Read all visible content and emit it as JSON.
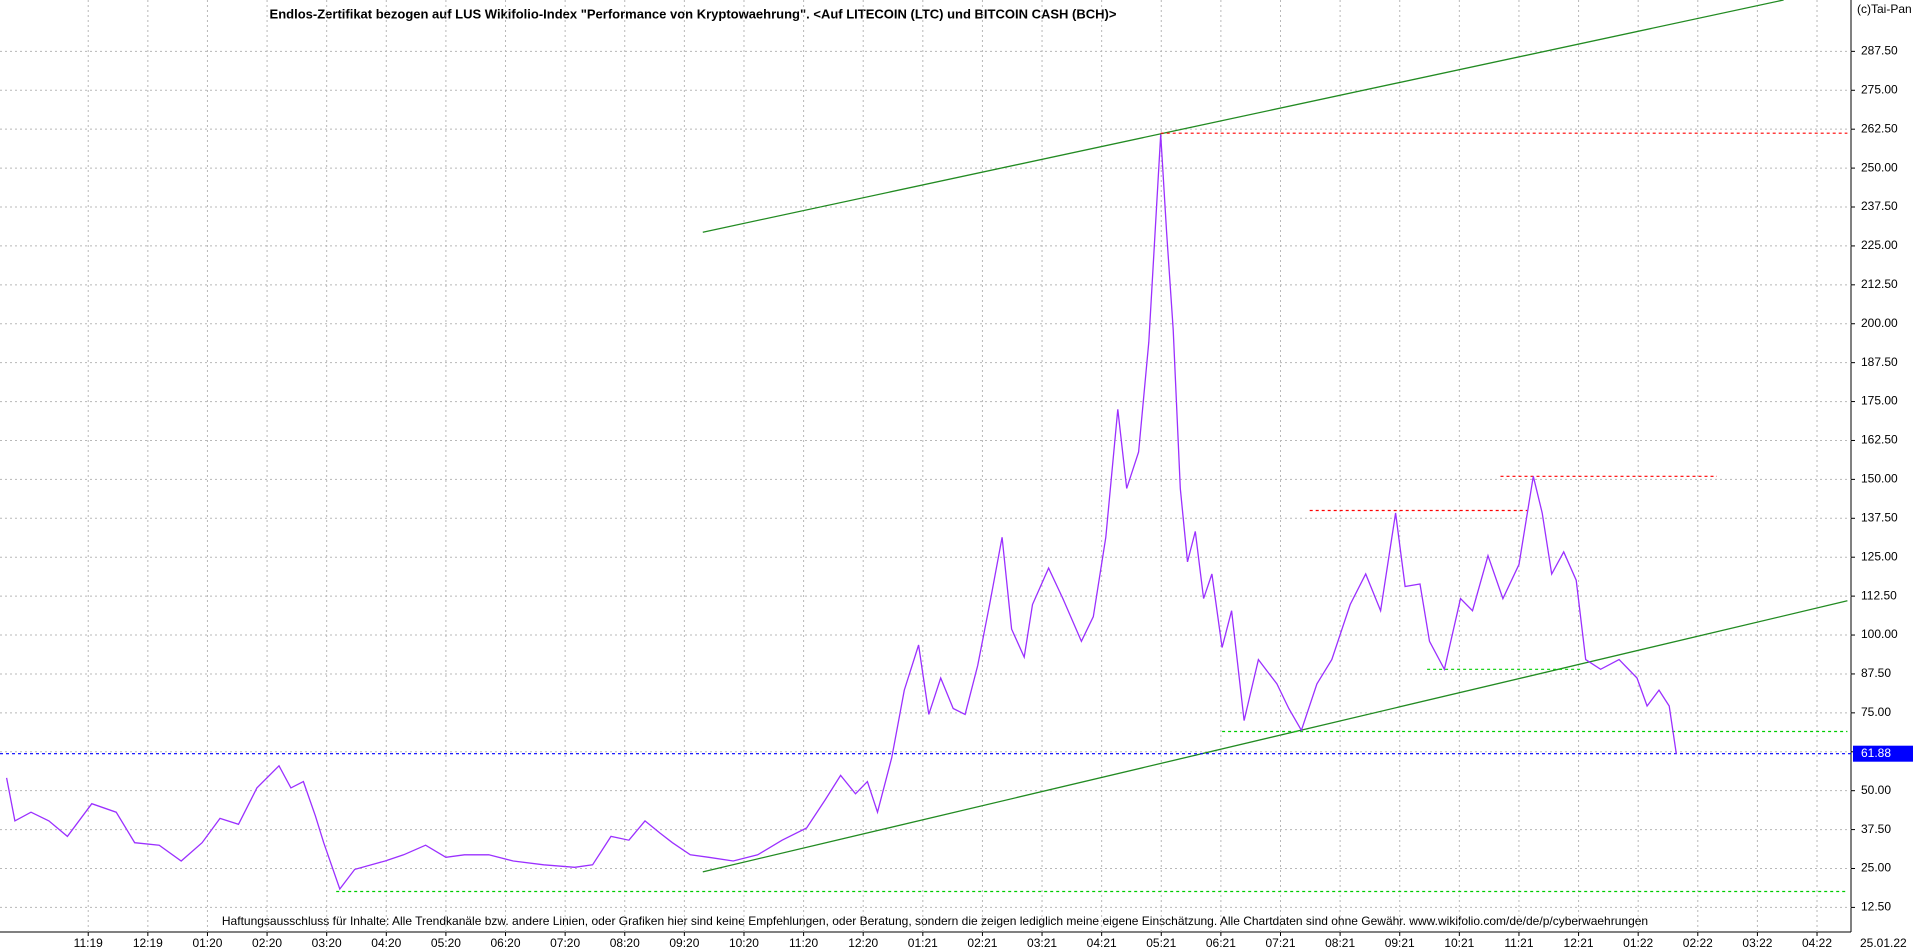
{
  "chart_data": {
    "type": "line",
    "title": "Endlos-Zertifikat bezogen auf LUS Wikifolio-Index \"Performance von Kryptowaehrung\". <Auf LITECOIN (LTC) und BITCOIN CASH (BCH)>",
    "copyright": "(c)Tai-Pan",
    "footer": "Haftungsausschluss für Inhalte: Alle Trendkanäle bzw. andere Linien, oder Grafiken hier sind keine Empfehlungen, oder Beratung, sondern die zeigen lediglich meine eigene Einschätzung. Alle Chartdaten sind ohne Gewähr.  www.wikifolio.com/de/de/p/cyberwaehrungen",
    "date_label": "25.01.22",
    "last_value": 61.88,
    "last_value_color": "#0000ff",
    "grid": true,
    "xlim": [
      -1.48,
      29.57
    ],
    "ylim": [
      4.6,
      304.0
    ],
    "xticks": [
      {
        "value": 0,
        "label": "11:19"
      },
      {
        "value": 1,
        "label": "12:19"
      },
      {
        "value": 2,
        "label": "01:20"
      },
      {
        "value": 3,
        "label": "02:20"
      },
      {
        "value": 4,
        "label": "03:20"
      },
      {
        "value": 5,
        "label": "04:20"
      },
      {
        "value": 6,
        "label": "05:20"
      },
      {
        "value": 7,
        "label": "06:20"
      },
      {
        "value": 8,
        "label": "07:20"
      },
      {
        "value": 9,
        "label": "08:20"
      },
      {
        "value": 10,
        "label": "09:20"
      },
      {
        "value": 11,
        "label": "10:20"
      },
      {
        "value": 12,
        "label": "11:20"
      },
      {
        "value": 13,
        "label": "12:20"
      },
      {
        "value": 14,
        "label": "01:21"
      },
      {
        "value": 15,
        "label": "02:21"
      },
      {
        "value": 16,
        "label": "03:21"
      },
      {
        "value": 17,
        "label": "04:21"
      },
      {
        "value": 18,
        "label": "05:21"
      },
      {
        "value": 19,
        "label": "06:21"
      },
      {
        "value": 20,
        "label": "07:21"
      },
      {
        "value": 21,
        "label": "08:21"
      },
      {
        "value": 22,
        "label": "09:21"
      },
      {
        "value": 23,
        "label": "10:21"
      },
      {
        "value": 24,
        "label": "11:21"
      },
      {
        "value": 25,
        "label": "12:21"
      },
      {
        "value": 26,
        "label": "01:22"
      },
      {
        "value": 27,
        "label": "02:22"
      },
      {
        "value": 28,
        "label": "03:22"
      },
      {
        "value": 29,
        "label": "04:22"
      }
    ],
    "yticks": [
      {
        "value": 12.5,
        "label": "12.50"
      },
      {
        "value": 25,
        "label": "25.00"
      },
      {
        "value": 37.5,
        "label": "37.50"
      },
      {
        "value": 50,
        "label": "50.00"
      },
      {
        "value": 62.5,
        "label": "62.50"
      },
      {
        "value": 75,
        "label": "75.00"
      },
      {
        "value": 87.5,
        "label": "87.50"
      },
      {
        "value": 100,
        "label": "100.00"
      },
      {
        "value": 112.5,
        "label": "112.50"
      },
      {
        "value": 125,
        "label": "125.00"
      },
      {
        "value": 137.5,
        "label": "137.50"
      },
      {
        "value": 150,
        "label": "150.00"
      },
      {
        "value": 162.5,
        "label": "162.50"
      },
      {
        "value": 175,
        "label": "175.00"
      },
      {
        "value": 187.5,
        "label": "187.50"
      },
      {
        "value": 200,
        "label": "200.00"
      },
      {
        "value": 212.5,
        "label": "212.50"
      },
      {
        "value": 225,
        "label": "225.00"
      },
      {
        "value": 237.5,
        "label": "237.50"
      },
      {
        "value": 250,
        "label": "250.00"
      },
      {
        "value": 262.5,
        "label": "262.50"
      },
      {
        "value": 275,
        "label": "275.00"
      },
      {
        "value": 287.5,
        "label": "287.50"
      }
    ],
    "series": [
      {
        "color": "#9b30ff",
        "x": [
          -1.37,
          -1.23,
          -0.96,
          -0.66,
          -0.35,
          0.06,
          0.47,
          0.78,
          1.19,
          1.56,
          1.91,
          2.21,
          2.52,
          2.83,
          3.2,
          3.4,
          3.61,
          3.81,
          3.95,
          4.22,
          4.47,
          4.98,
          5.29,
          5.66,
          6.0,
          6.31,
          6.72,
          7.13,
          7.64,
          8.16,
          8.46,
          8.77,
          9.07,
          9.34,
          9.59,
          9.8,
          10.1,
          10.41,
          10.82,
          11.23,
          11.64,
          12.05,
          12.36,
          12.62,
          12.87,
          13.07,
          13.24,
          13.48,
          13.69,
          13.93,
          14.1,
          14.3,
          14.51,
          14.71,
          14.92,
          15.12,
          15.33,
          15.49,
          15.7,
          15.84,
          16.11,
          16.35,
          16.66,
          16.86,
          17.07,
          17.27,
          17.42,
          17.62,
          17.79,
          17.99,
          18.09,
          18.2,
          18.32,
          18.44,
          18.57,
          18.71,
          18.85,
          19.02,
          19.18,
          19.39,
          19.63,
          19.94,
          20.14,
          20.35,
          20.61,
          20.86,
          21.17,
          21.43,
          21.68,
          21.93,
          22.09,
          22.34,
          22.5,
          22.75,
          23.02,
          23.22,
          23.48,
          23.73,
          24.0,
          24.24,
          24.39,
          24.55,
          24.75,
          24.96,
          25.12,
          25.37,
          25.68,
          25.98,
          26.15,
          26.35,
          26.52,
          26.64
        ],
        "values": [
          54.1,
          40.3,
          43.1,
          40.3,
          35.3,
          45.8,
          43.1,
          33.3,
          32.5,
          27.4,
          33.3,
          41.1,
          39.2,
          50.9,
          58.0,
          50.9,
          52.9,
          41.9,
          33.3,
          18.4,
          24.7,
          27.4,
          29.4,
          32.5,
          28.6,
          29.4,
          29.4,
          27.4,
          26.2,
          25.4,
          26.2,
          35.3,
          34.1,
          40.3,
          36.4,
          33.3,
          29.4,
          28.6,
          27.4,
          29.4,
          34.1,
          38.0,
          47.0,
          54.9,
          49.0,
          52.9,
          43.1,
          60.7,
          82.3,
          96.8,
          74.5,
          86.2,
          76.4,
          74.5,
          90.2,
          109.8,
          131.4,
          101.9,
          92.9,
          109.8,
          121.5,
          111.7,
          98.0,
          105.9,
          131.4,
          172.5,
          147.1,
          158.8,
          194.1,
          260.8,
          229.4,
          198.1,
          147.1,
          123.5,
          133.3,
          111.7,
          119.6,
          96.0,
          107.8,
          72.5,
          92.1,
          84.3,
          76.4,
          69.4,
          84.3,
          92.1,
          109.8,
          119.6,
          107.8,
          139.2,
          115.6,
          116.4,
          98.0,
          89.0,
          111.7,
          107.8,
          125.5,
          111.7,
          122.7,
          151.0,
          139.2,
          119.6,
          126.7,
          117.6,
          92.1,
          89.0,
          92.1,
          86.2,
          77.2,
          82.3,
          77.2,
          61.88
        ]
      }
    ],
    "lines": [
      {
        "color": "#228b22",
        "style": "solid",
        "x": [
          10.31,
          28.44
        ],
        "values": [
          229.4,
          304.0
        ]
      },
      {
        "color": "#228b22",
        "style": "solid",
        "x": [
          10.31,
          29.51
        ],
        "values": [
          23.9,
          111.0
        ]
      },
      {
        "color": "#ff0000",
        "style": "dotted",
        "x": [
          17.99,
          29.51
        ],
        "values": [
          261.2,
          261.2
        ]
      },
      {
        "color": "#ff0000",
        "style": "dotted",
        "x": [
          20.49,
          24.14
        ],
        "values": [
          140.0,
          140.0
        ]
      },
      {
        "color": "#ff0000",
        "style": "dotted",
        "x": [
          23.69,
          27.32
        ],
        "values": [
          151.0,
          151.0
        ]
      },
      {
        "color": "#00cc00",
        "style": "dotted",
        "x": [
          22.46,
          25.06
        ],
        "values": [
          89.0,
          89.0
        ]
      },
      {
        "color": "#00cc00",
        "style": "dotted",
        "x": [
          19.02,
          29.51
        ],
        "values": [
          69.0,
          69.0
        ]
      },
      {
        "color": "#00cc00",
        "style": "dotted",
        "x": [
          4.16,
          29.51
        ],
        "values": [
          17.6,
          17.6
        ]
      }
    ]
  }
}
